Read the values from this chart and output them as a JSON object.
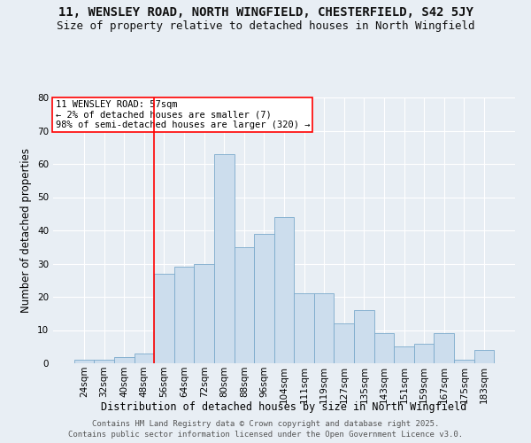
{
  "title1": "11, WENSLEY ROAD, NORTH WINGFIELD, CHESTERFIELD, S42 5JY",
  "title2": "Size of property relative to detached houses in North Wingfield",
  "xlabel": "Distribution of detached houses by size in North Wingfield",
  "ylabel": "Number of detached properties",
  "categories": [
    "24sqm",
    "32sqm",
    "40sqm",
    "48sqm",
    "56sqm",
    "64sqm",
    "72sqm",
    "80sqm",
    "88sqm",
    "96sqm",
    "104sqm",
    "111sqm",
    "119sqm",
    "127sqm",
    "135sqm",
    "143sqm",
    "151sqm",
    "159sqm",
    "167sqm",
    "175sqm",
    "183sqm"
  ],
  "values": [
    1,
    1,
    2,
    3,
    27,
    29,
    30,
    63,
    35,
    39,
    44,
    21,
    21,
    12,
    16,
    9,
    5,
    6,
    9,
    1,
    4
  ],
  "bar_color": "#ccdded",
  "bar_edge_color": "#7baacb",
  "red_line_index": 4,
  "annotation_box_text": "11 WENSLEY ROAD: 57sqm\n← 2% of detached houses are smaller (7)\n98% of semi-detached houses are larger (320) →",
  "ylim": [
    0,
    80
  ],
  "yticks": [
    0,
    10,
    20,
    30,
    40,
    50,
    60,
    70,
    80
  ],
  "bg_color": "#e8eef4",
  "plot_bg_color": "#e8eef4",
  "grid_color": "#ffffff",
  "footer": "Contains HM Land Registry data © Crown copyright and database right 2025.\nContains public sector information licensed under the Open Government Licence v3.0.",
  "title_fontsize": 10,
  "subtitle_fontsize": 9,
  "axis_label_fontsize": 8.5,
  "tick_fontsize": 7.5,
  "annotation_fontsize": 7.5,
  "footer_fontsize": 6.5
}
